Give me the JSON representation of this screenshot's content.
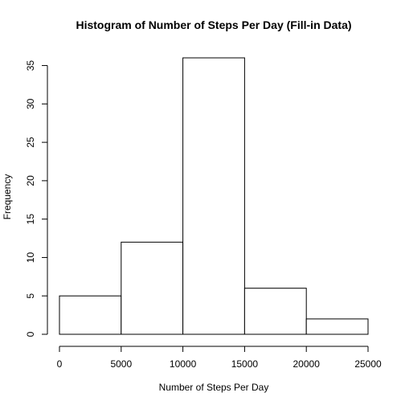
{
  "chart_data": {
    "type": "bar",
    "subtype": "histogram",
    "title": "Histogram of Number of Steps Per Day (Fill-in Data)",
    "xlabel": "Number of Steps Per Day",
    "ylabel": "Frequency",
    "bins": [
      {
        "start": 0,
        "end": 5000,
        "count": 5
      },
      {
        "start": 5000,
        "end": 10000,
        "count": 12
      },
      {
        "start": 10000,
        "end": 15000,
        "count": 36
      },
      {
        "start": 15000,
        "end": 20000,
        "count": 6
      },
      {
        "start": 20000,
        "end": 25000,
        "count": 2
      }
    ],
    "xlim": [
      0,
      25000
    ],
    "ylim": [
      0,
      36
    ],
    "xticks": [
      0,
      5000,
      10000,
      15000,
      20000,
      25000
    ],
    "yticks": [
      0,
      5,
      10,
      15,
      20,
      25,
      30,
      35
    ],
    "grid": false,
    "legend": "none"
  }
}
